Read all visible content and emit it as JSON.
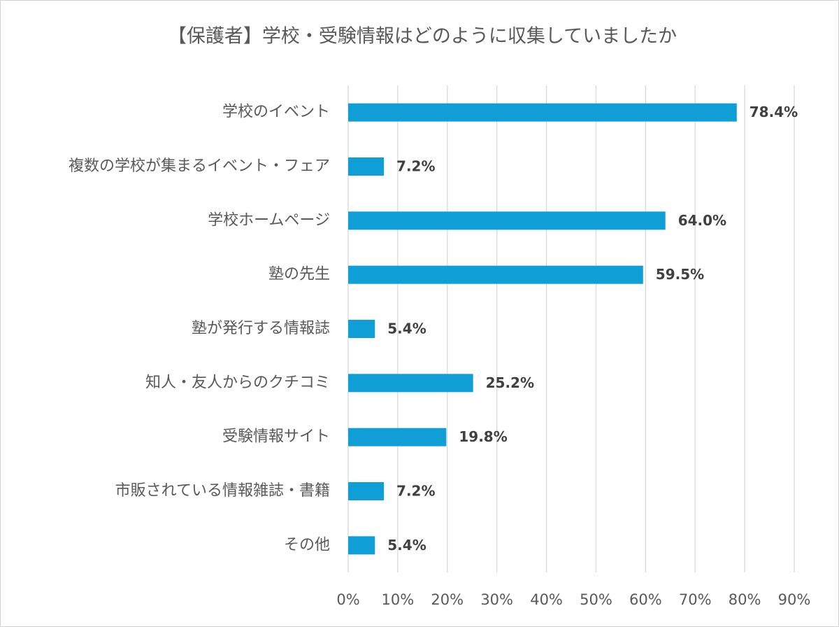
{
  "chart_data": {
    "type": "barh",
    "title": "【保護者】学校・受験情報はどのように収集していましたか",
    "categories": [
      "学校のイベント",
      "複数の学校が集まるイベント・フェア",
      "学校ホームページ",
      "塾の先生",
      "塾が発行する情報誌",
      "知人・友人からのクチコミ",
      "受験情報サイト",
      "市販されている情報雑誌・書籍",
      "その他"
    ],
    "values": [
      78.4,
      7.2,
      64.0,
      59.5,
      5.4,
      25.2,
      19.8,
      7.2,
      5.4
    ],
    "value_labels": [
      "78.4%",
      "7.2%",
      "64.0%",
      "59.5%",
      "5.4%",
      "25.2%",
      "19.8%",
      "7.2%",
      "5.4%"
    ],
    "color": "#0f9ed5",
    "xlim": [
      0,
      90
    ],
    "xticks": [
      {
        "value": 0,
        "label": "0%"
      },
      {
        "value": 10,
        "label": "10%"
      },
      {
        "value": 20,
        "label": "20%"
      },
      {
        "value": 30,
        "label": "30%"
      },
      {
        "value": 40,
        "label": "40%"
      },
      {
        "value": 50,
        "label": "50%"
      },
      {
        "value": 60,
        "label": "60%"
      },
      {
        "value": 70,
        "label": "70%"
      },
      {
        "value": 80,
        "label": "80%"
      },
      {
        "value": 90,
        "label": "90%"
      }
    ],
    "grid": true
  }
}
